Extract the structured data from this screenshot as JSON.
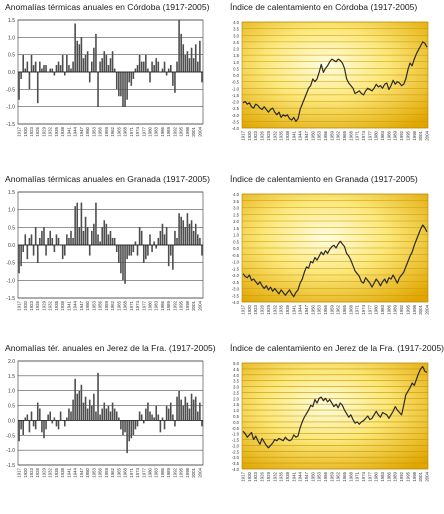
{
  "colors": {
    "bar": "#4d4d4d",
    "line": "#2b2b2b",
    "grid_left": "#2a2a2a",
    "grid_right": "#c99a00",
    "bg_center": "#fffde0",
    "bg_mid": "#fbe77a",
    "bg_edge": "#e0a500"
  },
  "chart_data": [
    {
      "type": "bar",
      "title": "Anomalías térmicas anuales en Córdoba (1917-2005)",
      "xlabel": "",
      "ylabel": "",
      "ylim": [
        -1.5,
        1.5
      ],
      "yticks": [
        "1.5",
        "1.0",
        "0.5",
        "0.0",
        "-0.5",
        "-1.0",
        "-1.5"
      ],
      "xticks": [
        "1917",
        "1920",
        "1923",
        "1926",
        "1929",
        "1932",
        "1935",
        "1938",
        "1941",
        "1944",
        "1947",
        "1950",
        "1953",
        "1956",
        "1959",
        "1962",
        "1965",
        "1968",
        "1971",
        "1974",
        "1977",
        "1980",
        "1983",
        "1986",
        "1989",
        "1992",
        "1995",
        "1998",
        "2001",
        "2004"
      ],
      "grid": true,
      "x_start": 1917,
      "values": [
        -0.8,
        -0.2,
        0.5,
        0.1,
        0.3,
        -0.5,
        0.5,
        0.2,
        0.3,
        -0.9,
        0.3,
        0.1,
        0.2,
        0.2,
        0.0,
        0.1,
        0.1,
        -0.1,
        0.2,
        0.3,
        0.2,
        0.5,
        -0.1,
        0.5,
        0.2,
        0.1,
        0.3,
        1.4,
        0.9,
        0.8,
        1.0,
        0.4,
        0.5,
        0.6,
        -0.3,
        0.3,
        0.7,
        1.1,
        -1.0,
        0.3,
        0.4,
        0.6,
        0.5,
        0.2,
        0.4,
        0.6,
        0.1,
        -0.5,
        -0.7,
        -0.7,
        -1.0,
        -1.0,
        -0.8,
        -0.3,
        -0.4,
        -0.2,
        0.1,
        0.2,
        0.5,
        0.3,
        0.3,
        0.5,
        0.1,
        -0.3,
        0.3,
        0.2,
        0.4,
        0.3,
        0.0,
        0.1,
        0.3,
        -0.1,
        0.1,
        0.2,
        -0.4,
        -0.6,
        0.3,
        1.5,
        1.1,
        0.8,
        0.5,
        0.6,
        0.4,
        0.7,
        0.4,
        0.8,
        0.3,
        0.9,
        -0.3
      ]
    },
    {
      "type": "line",
      "title": "Índice de calentamiento en Córdoba (1917-2005)",
      "xlabel": "",
      "ylabel": "",
      "ylim": [
        -4.0,
        4.0
      ],
      "yticks": [
        "4.0",
        "3.5",
        "3.0",
        "2.5",
        "2.0",
        "1.5",
        "1.0",
        "0.5",
        "0.0",
        "-0.5",
        "-1.0",
        "-1.5",
        "-2.0",
        "-2.5",
        "-3.0",
        "-3.5",
        "-4.0"
      ],
      "xticks": [
        "1917",
        "1920",
        "1923",
        "1926",
        "1929",
        "1932",
        "1935",
        "1938",
        "1941",
        "1944",
        "1947",
        "1950",
        "1953",
        "1956",
        "1959",
        "1962",
        "1965",
        "1968",
        "1971",
        "1974",
        "1977",
        "1980",
        "1983",
        "1986",
        "1989",
        "1992",
        "1995",
        "1998",
        "2001",
        "2004"
      ],
      "grid": true,
      "x_start": 1917,
      "values": [
        -2.1,
        -2.0,
        -2.2,
        -2.1,
        -2.4,
        -2.5,
        -2.2,
        -2.3,
        -2.5,
        -2.6,
        -2.4,
        -2.6,
        -2.8,
        -2.6,
        -2.5,
        -2.8,
        -3.0,
        -2.8,
        -3.2,
        -3.0,
        -3.1,
        -3.0,
        -3.3,
        -3.4,
        -3.2,
        -3.5,
        -3.3,
        -2.6,
        -2.2,
        -1.8,
        -1.4,
        -1.0,
        -0.8,
        -0.3,
        -0.5,
        -0.3,
        0.2,
        0.8,
        0.2,
        0.5,
        0.7,
        1.0,
        1.2,
        1.1,
        1.0,
        1.2,
        1.1,
        0.9,
        0.5,
        -0.3,
        -0.6,
        -0.8,
        -1.0,
        -1.4,
        -1.3,
        -1.2,
        -1.4,
        -1.5,
        -1.2,
        -1.0,
        -1.1,
        -1.2,
        -1.0,
        -0.7,
        -0.9,
        -0.8,
        -1.0,
        -0.7,
        -0.6,
        -1.1,
        -0.8,
        -0.4,
        -0.7,
        -0.5,
        -0.6,
        -0.8,
        -0.7,
        -0.3,
        0.4,
        0.9,
        0.7,
        1.2,
        1.6,
        1.9,
        2.2,
        2.5,
        2.4,
        2.1
      ]
    },
    {
      "type": "bar",
      "title": "Anomalías térmicas anuales en Granada (1917-2005)",
      "xlabel": "",
      "ylabel": "",
      "ylim": [
        -1.5,
        1.5
      ],
      "yticks": [
        "1.5",
        "1.0",
        "0.5",
        "0.0",
        "-0.5",
        "-1.0",
        "-1.5"
      ],
      "xticks": [
        "1917",
        "1920",
        "1923",
        "1926",
        "1929",
        "1932",
        "1935",
        "1938",
        "1941",
        "1944",
        "1947",
        "1950",
        "1953",
        "1956",
        "1959",
        "1962",
        "1965",
        "1968",
        "1971",
        "1974",
        "1977",
        "1980",
        "1983",
        "1986",
        "1989",
        "1992",
        "1995",
        "1998",
        "2001",
        "2004"
      ],
      "grid": true,
      "x_start": 1917,
      "values": [
        -0.8,
        -0.6,
        -0.2,
        0.3,
        -0.4,
        0.2,
        0.3,
        -0.3,
        0.5,
        -0.5,
        0.2,
        0.4,
        0.5,
        -0.3,
        0.2,
        0.4,
        0.2,
        -0.2,
        0.3,
        0.2,
        0.0,
        -0.4,
        -0.3,
        0.3,
        0.2,
        0.4,
        0.2,
        1.1,
        1.2,
        0.5,
        1.2,
        0.4,
        0.8,
        0.5,
        -0.3,
        0.4,
        0.6,
        1.2,
        0.3,
        0.1,
        0.5,
        0.7,
        0.6,
        0.3,
        0.4,
        0.2,
        0.2,
        -0.2,
        -0.5,
        -0.8,
        -1.0,
        -1.1,
        -0.4,
        -0.3,
        -0.3,
        -0.2,
        0.1,
        -0.3,
        0.5,
        0.4,
        -0.5,
        -0.4,
        -0.3,
        0.3,
        -0.2,
        0.1,
        -0.1,
        0.2,
        0.4,
        0.6,
        0.3,
        0.5,
        -0.6,
        -0.3,
        -0.7,
        0.4,
        0.2,
        0.9,
        0.8,
        0.7,
        0.5,
        0.9,
        0.6,
        0.7,
        0.4,
        0.6,
        0.3,
        0.2,
        -0.3
      ]
    },
    {
      "type": "line",
      "title": "Índice de calentamiento en Granada (1917-2005)",
      "xlabel": "",
      "ylabel": "",
      "ylim": [
        -4.0,
        4.0
      ],
      "yticks": [
        "4.0",
        "3.5",
        "3.0",
        "2.5",
        "2.0",
        "1.5",
        "1.0",
        "0.5",
        "0.0",
        "-0.5",
        "-1.0",
        "-1.5",
        "-2.0",
        "-2.5",
        "-3.0",
        "-3.5",
        "-4.0"
      ],
      "xticks": [
        "1917",
        "1920",
        "1923",
        "1926",
        "1929",
        "1932",
        "1935",
        "1938",
        "1941",
        "1944",
        "1947",
        "1950",
        "1953",
        "1956",
        "1959",
        "1962",
        "1965",
        "1968",
        "1971",
        "1974",
        "1977",
        "1980",
        "1983",
        "1986",
        "1989",
        "1992",
        "1995",
        "1998",
        "2001",
        "2004"
      ],
      "grid": true,
      "x_start": 1917,
      "values": [
        -1.9,
        -2.1,
        -2.2,
        -2.0,
        -2.4,
        -2.3,
        -2.5,
        -2.7,
        -2.5,
        -2.8,
        -3.0,
        -2.8,
        -3.1,
        -2.9,
        -3.2,
        -3.0,
        -3.2,
        -3.4,
        -3.1,
        -3.3,
        -3.5,
        -3.3,
        -3.1,
        -3.4,
        -3.6,
        -3.3,
        -3.1,
        -2.6,
        -2.3,
        -1.8,
        -1.4,
        -1.5,
        -1.0,
        -1.1,
        -0.7,
        -0.9,
        -0.6,
        -0.3,
        -0.5,
        -0.2,
        -0.4,
        -0.1,
        0.1,
        0.2,
        0.0,
        0.3,
        0.5,
        0.3,
        0.1,
        -0.4,
        -0.6,
        -0.9,
        -1.3,
        -1.7,
        -1.9,
        -2.1,
        -2.5,
        -2.6,
        -2.2,
        -2.4,
        -2.6,
        -2.9,
        -2.6,
        -2.3,
        -2.5,
        -2.8,
        -2.5,
        -2.3,
        -2.6,
        -2.2,
        -2.3,
        -2.0,
        -2.3,
        -2.6,
        -2.2,
        -2.0,
        -1.8,
        -1.4,
        -1.0,
        -0.6,
        -0.3,
        0.2,
        0.6,
        1.0,
        1.4,
        1.7,
        1.5,
        1.2
      ]
    },
    {
      "type": "bar",
      "title": "Anomalías tér. anuales en Jerez de la Fra. (1917-2005)",
      "xlabel": "",
      "ylabel": "",
      "ylim": [
        -1.5,
        2.0
      ],
      "yticks": [
        "2.0",
        "1.5",
        "1.0",
        "0.5",
        "0.0",
        "-0.5",
        "-1.0",
        "-1.5"
      ],
      "xticks": [
        "1917",
        "1920",
        "1923",
        "1926",
        "1929",
        "1932",
        "1935",
        "1938",
        "1941",
        "1944",
        "1947",
        "1950",
        "1953",
        "1956",
        "1959",
        "1962",
        "1965",
        "1968",
        "1971",
        "1974",
        "1977",
        "1980",
        "1983",
        "1986",
        "1989",
        "1992",
        "1995",
        "1998",
        "2001",
        "2004"
      ],
      "grid": true,
      "x_start": 1917,
      "values": [
        -0.7,
        -0.3,
        -0.5,
        0.1,
        0.2,
        -0.4,
        0.3,
        -0.2,
        -0.3,
        0.6,
        0.4,
        -0.4,
        -0.6,
        -0.3,
        0.2,
        0.3,
        -0.1,
        0.1,
        -0.2,
        -0.3,
        0.3,
        0.0,
        -0.2,
        0.1,
        0.4,
        0.3,
        0.7,
        1.4,
        0.9,
        1.0,
        1.2,
        0.6,
        0.8,
        0.4,
        0.7,
        0.5,
        0.9,
        0.3,
        1.6,
        0.2,
        0.4,
        0.6,
        0.4,
        0.5,
        0.3,
        0.6,
        0.4,
        0.3,
        0.1,
        -0.3,
        -0.5,
        -0.4,
        -1.1,
        -0.7,
        -0.6,
        -0.5,
        -0.3,
        -0.2,
        0.3,
        0.2,
        -0.1,
        0.4,
        0.6,
        0.3,
        0.2,
        0.1,
        0.5,
        0.2,
        -0.4,
        0.1,
        -0.3,
        0.5,
        0.4,
        0.6,
        0.2,
        -0.2,
        0.8,
        1.0,
        0.7,
        0.5,
        0.8,
        0.6,
        0.4,
        0.9,
        0.7,
        0.8,
        0.3,
        0.6,
        -0.2
      ]
    },
    {
      "type": "line",
      "title": "Índice de calentamiento en Jerez de la Fra. (1917-2005)",
      "xlabel": "",
      "ylabel": "",
      "ylim": [
        -4.0,
        5.0
      ],
      "yticks": [
        "5.0",
        "4.5",
        "4.0",
        "3.5",
        "3.0",
        "2.5",
        "2.0",
        "1.5",
        "1.0",
        "0.5",
        "0.0",
        "-0.5",
        "-1.0",
        "-1.5",
        "-2.0",
        "-2.5",
        "-3.0",
        "-3.5",
        "-4.0"
      ],
      "xticks": [
        "1917",
        "1920",
        "1923",
        "1926",
        "1929",
        "1932",
        "1935",
        "1938",
        "1941",
        "1944",
        "1947",
        "1950",
        "1953",
        "1956",
        "1959",
        "1962",
        "1965",
        "1968",
        "1971",
        "1974",
        "1977",
        "1980",
        "1983",
        "1986",
        "1989",
        "1992",
        "1995",
        "1998",
        "2001",
        "2004"
      ],
      "grid": true,
      "x_start": 1917,
      "values": [
        -0.8,
        -1.0,
        -1.3,
        -1.1,
        -0.9,
        -1.5,
        -1.2,
        -1.6,
        -1.9,
        -1.4,
        -1.7,
        -2.0,
        -2.2,
        -2.0,
        -1.8,
        -1.5,
        -1.6,
        -1.4,
        -1.5,
        -1.6,
        -1.3,
        -1.5,
        -1.6,
        -1.5,
        -1.1,
        -1.3,
        -1.2,
        -0.5,
        0.0,
        0.4,
        0.7,
        1.0,
        1.4,
        1.3,
        1.9,
        1.6,
        2.0,
        2.1,
        1.8,
        2.0,
        1.7,
        1.9,
        1.6,
        1.3,
        1.5,
        1.2,
        1.6,
        1.4,
        1.0,
        0.7,
        0.4,
        0.6,
        0.2,
        -0.1,
        0.0,
        -0.2,
        0.0,
        0.1,
        0.3,
        0.5,
        0.2,
        0.3,
        0.6,
        0.9,
        0.6,
        0.4,
        0.8,
        0.7,
        0.6,
        0.3,
        0.6,
        0.9,
        1.3,
        1.0,
        0.8,
        0.6,
        1.4,
        2.3,
        2.6,
        2.9,
        3.3,
        3.1,
        3.6,
        4.1,
        4.5,
        4.7,
        4.3,
        4.2
      ]
    }
  ]
}
